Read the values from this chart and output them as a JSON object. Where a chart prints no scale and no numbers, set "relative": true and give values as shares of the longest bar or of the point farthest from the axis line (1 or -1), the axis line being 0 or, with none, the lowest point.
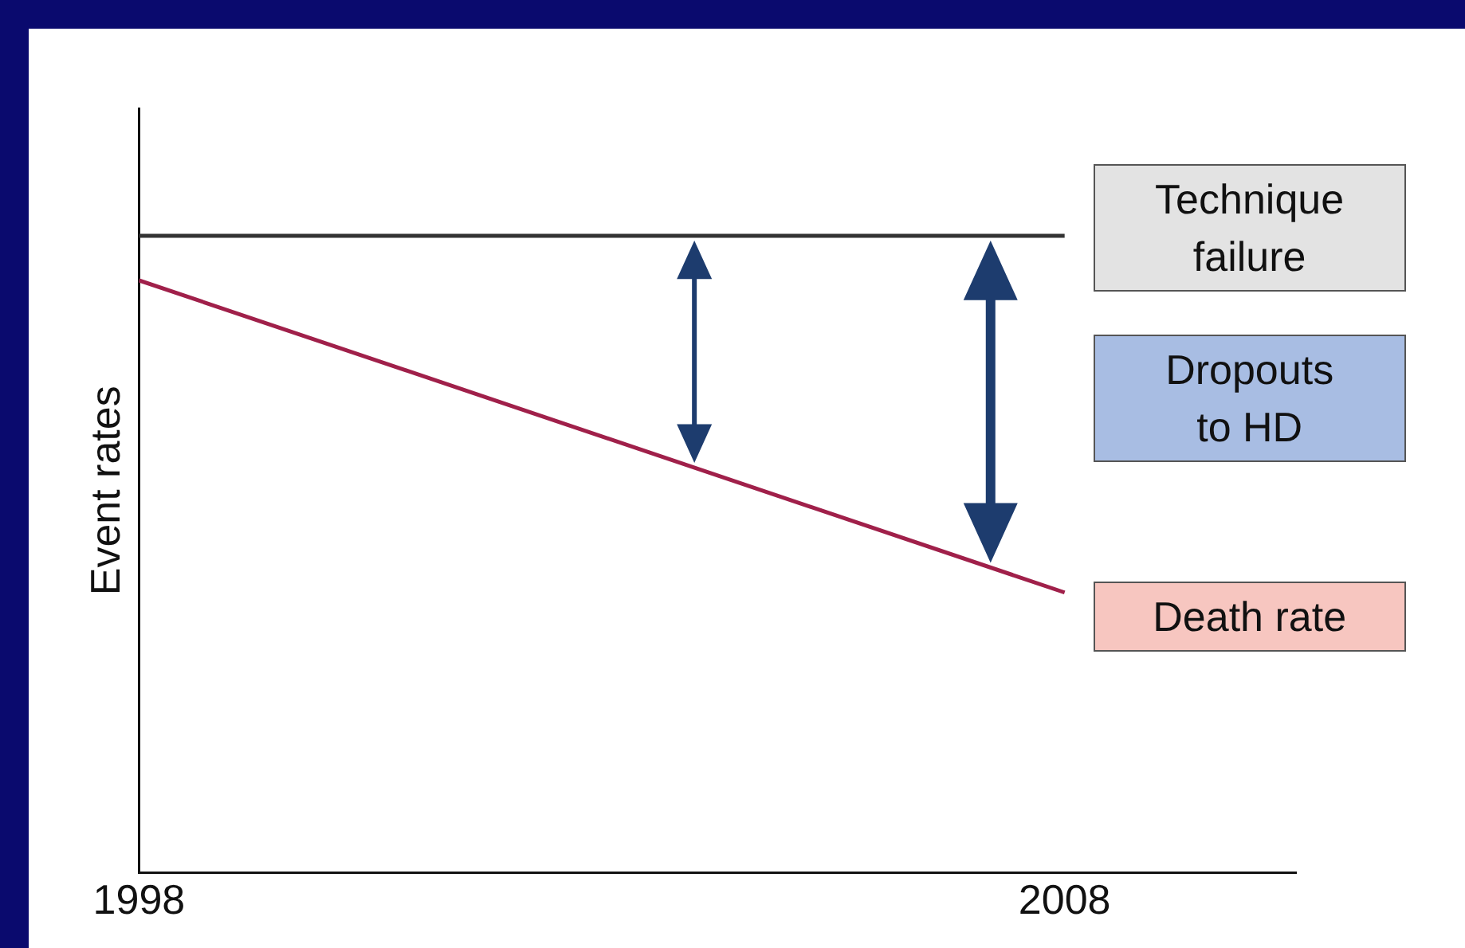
{
  "chart_data": {
    "type": "line",
    "relative": true,
    "ylabel": "Event rates",
    "xlim": [
      1998,
      2010.5
    ],
    "xticks": [
      1998,
      2008
    ],
    "tick_labels": "x",
    "grid": false,
    "legend": false,
    "marker": "none",
    "x": [
      1998,
      2008
    ],
    "series": [
      {
        "name": "Technique failure",
        "color": "#333333",
        "values": [
          1,
          1
        ]
      },
      {
        "name": "Death rate",
        "color": "#a0204a",
        "values": [
          0.93,
          0.44
        ]
      }
    ],
    "annotations": [
      "Dropouts to HD"
    ]
  }
}
